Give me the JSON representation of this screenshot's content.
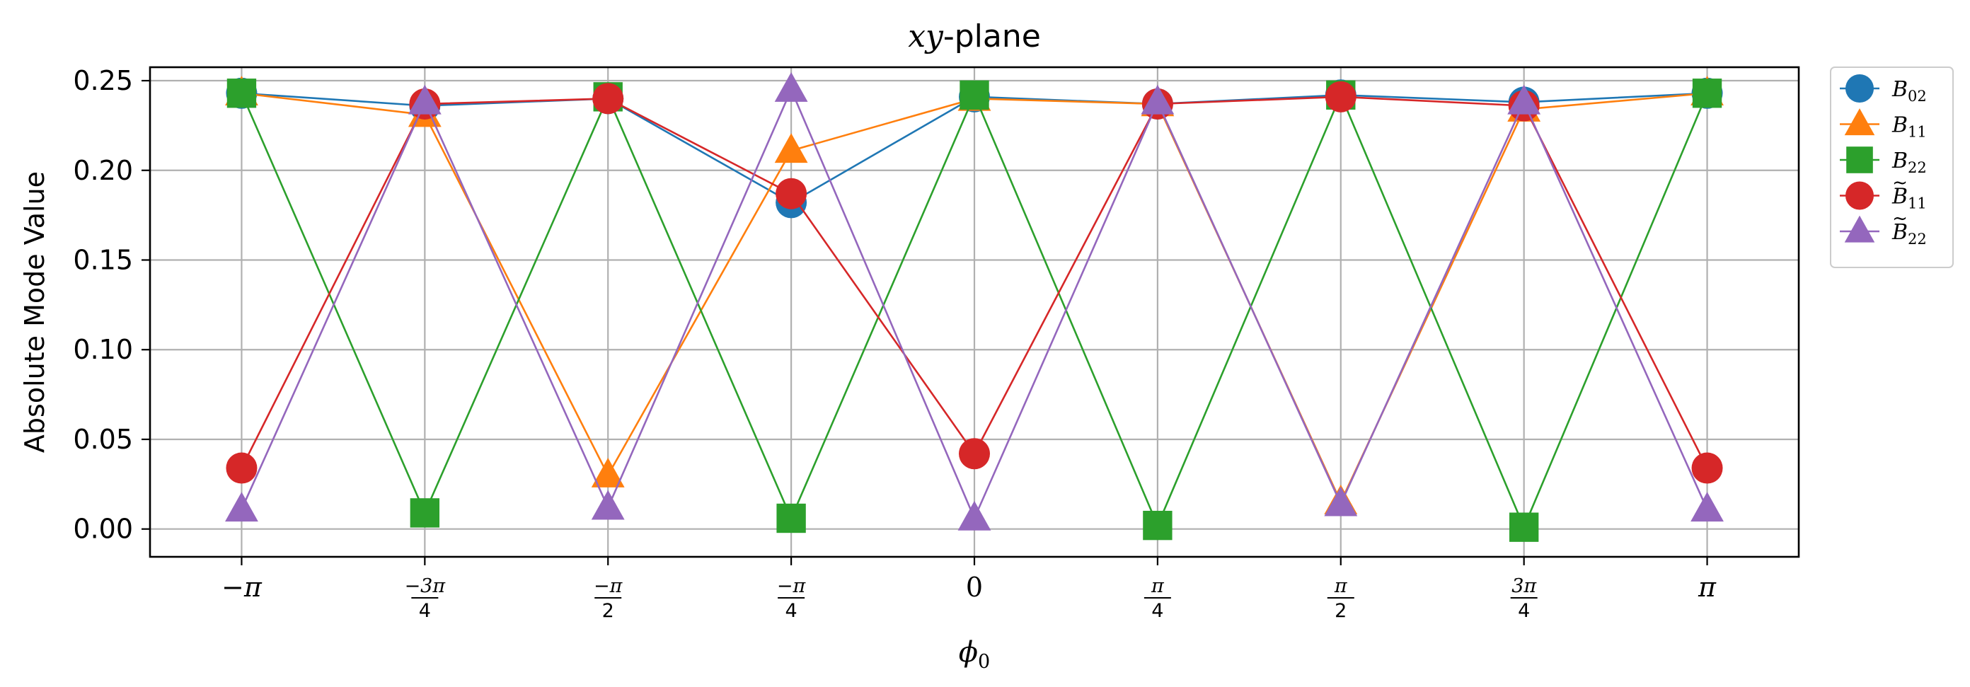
{
  "chart_data": {
    "type": "line",
    "title": "xy-plane",
    "title_parts": {
      "italic": "xy",
      "rest": "-plane"
    },
    "xlabel": "ϕ0",
    "xlabel_parts": {
      "base": "ϕ",
      "sub": "0"
    },
    "ylabel": "Absolute Mode Value",
    "x": [
      -3.14159,
      -2.35619,
      -1.5708,
      -0.7854,
      0,
      0.7854,
      1.5708,
      2.35619,
      3.14159
    ],
    "x_tick_labels": [
      {
        "kind": "plain",
        "text": "−π"
      },
      {
        "kind": "frac",
        "num": "−3π",
        "den": "4"
      },
      {
        "kind": "frac",
        "num": "−π",
        "den": "2"
      },
      {
        "kind": "frac",
        "num": "−π",
        "den": "4"
      },
      {
        "kind": "plain",
        "text": "0"
      },
      {
        "kind": "frac",
        "num": "π",
        "den": "4"
      },
      {
        "kind": "frac",
        "num": "π",
        "den": "2"
      },
      {
        "kind": "frac",
        "num": "3π",
        "den": "4"
      },
      {
        "kind": "plain",
        "text": "π"
      }
    ],
    "y_ticks": [
      0.0,
      0.05,
      0.1,
      0.15,
      0.2,
      0.25
    ],
    "y_tick_labels": [
      "0.00",
      "0.05",
      "0.10",
      "0.15",
      "0.20",
      "0.25"
    ],
    "xlim": [
      -3.5343,
      3.5343
    ],
    "ylim": [
      -0.0155,
      0.2575
    ],
    "grid": true,
    "legend_position": "outside-right-top",
    "series": [
      {
        "name": "B02",
        "legend_base": "B",
        "legend_tilde": false,
        "legend_sub": "02",
        "color": "#1f77b4",
        "marker": "circle",
        "values": [
          0.243,
          0.236,
          0.24,
          0.182,
          0.241,
          0.237,
          0.242,
          0.238,
          0.243
        ]
      },
      {
        "name": "B11",
        "legend_base": "B",
        "legend_tilde": false,
        "legend_sub": "11",
        "color": "#ff7f0e",
        "marker": "triangle",
        "values": [
          0.243,
          0.231,
          0.03,
          0.211,
          0.24,
          0.237,
          0.015,
          0.234,
          0.243
        ]
      },
      {
        "name": "B22",
        "legend_base": "B",
        "legend_tilde": false,
        "legend_sub": "22",
        "color": "#2ca02c",
        "marker": "square",
        "values": [
          0.243,
          0.009,
          0.241,
          0.006,
          0.242,
          0.002,
          0.242,
          0.001,
          0.243
        ]
      },
      {
        "name": "B̃11",
        "legend_base": "B",
        "legend_tilde": true,
        "legend_sub": "11",
        "color": "#d62728",
        "marker": "circle",
        "values": [
          0.034,
          0.237,
          0.24,
          0.187,
          0.042,
          0.237,
          0.241,
          0.236,
          0.034
        ]
      },
      {
        "name": "B̃22",
        "legend_base": "B",
        "legend_tilde": true,
        "legend_sub": "22",
        "color": "#9467bd",
        "marker": "triangle",
        "values": [
          0.011,
          0.238,
          0.012,
          0.245,
          0.006,
          0.238,
          0.014,
          0.238,
          0.011
        ]
      }
    ]
  }
}
